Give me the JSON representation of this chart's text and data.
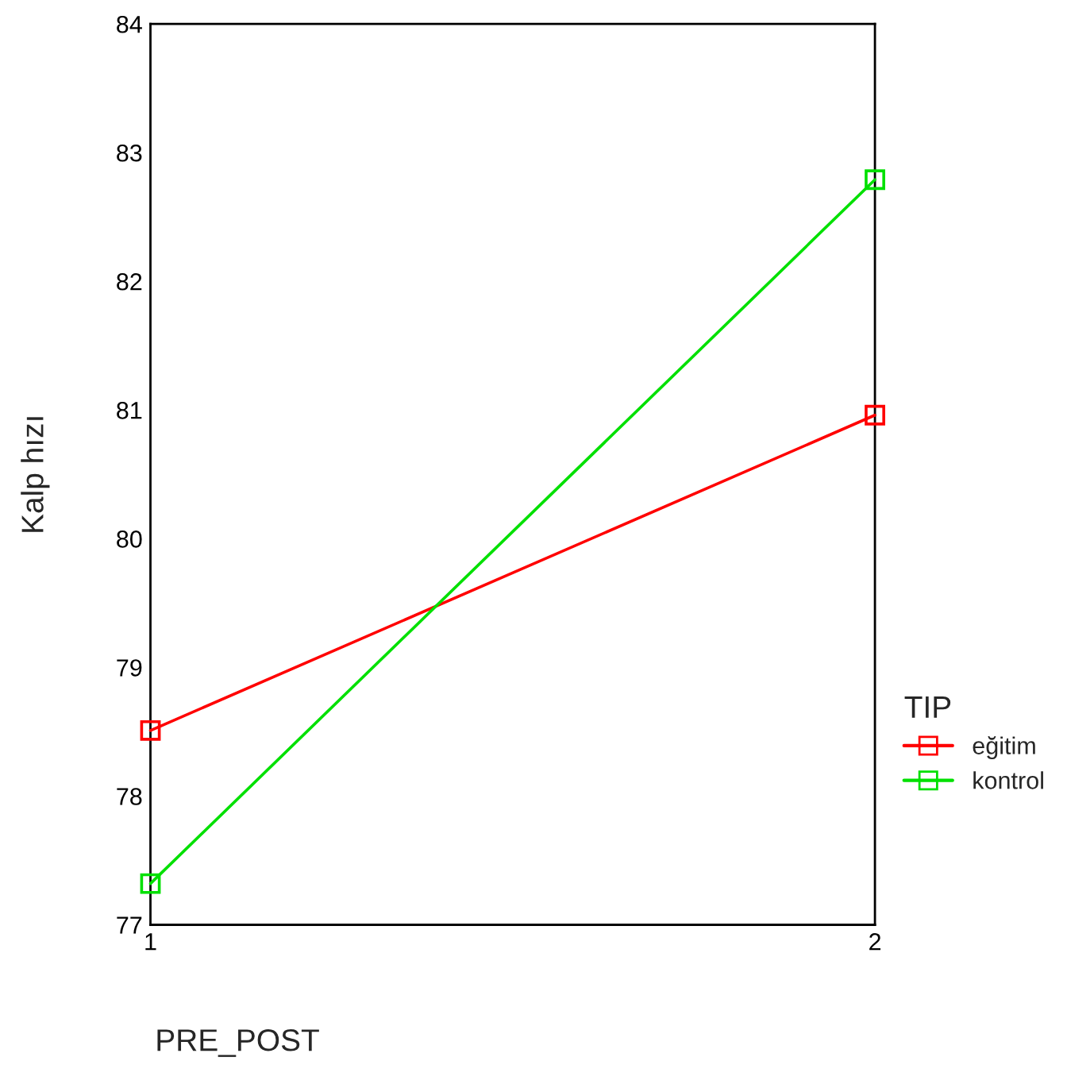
{
  "chart_data": {
    "type": "line",
    "xlabel": "PRE_POST",
    "ylabel": "Kalp hızı",
    "legend_title": "TIP",
    "x": [
      1,
      2
    ],
    "xlim": [
      1,
      2
    ],
    "xticks": [
      1,
      2
    ],
    "series": [
      {
        "name": "eğitim",
        "color": "#ff0000",
        "values": [
          78.51,
          80.96
        ]
      },
      {
        "name": "kontrol",
        "color": "#00e000",
        "values": [
          77.32,
          82.79
        ]
      }
    ],
    "ylim": [
      77,
      84
    ],
    "yticks": [
      77,
      78,
      79,
      80,
      81,
      82,
      83,
      84
    ],
    "grid": false,
    "legend": "right",
    "marker": "square",
    "line_style": "solid"
  }
}
